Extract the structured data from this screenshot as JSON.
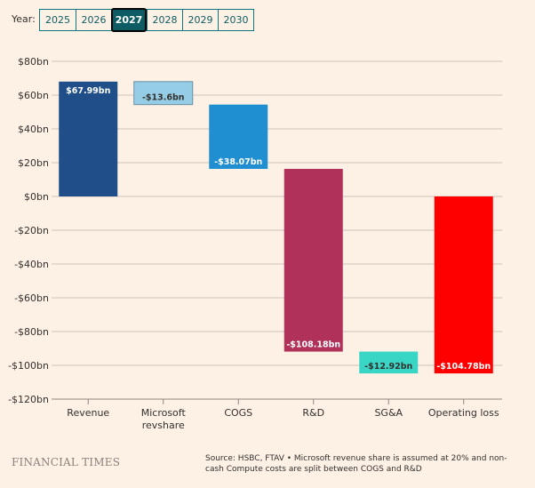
{
  "controls": {
    "year_label": "Year:",
    "years": [
      "2025",
      "2026",
      "2027",
      "2028",
      "2029",
      "2030"
    ],
    "selected": "2027"
  },
  "chart_data": {
    "type": "waterfall",
    "categories": [
      "Revenue",
      "Microsoft revshare",
      "COGS",
      "R&D",
      "SG&A",
      "Operating loss"
    ],
    "category_lines": [
      [
        "Revenue"
      ],
      [
        "Microsoft",
        "revshare"
      ],
      [
        "COGS"
      ],
      [
        "R&D"
      ],
      [
        "SG&A"
      ],
      [
        "Operating loss"
      ]
    ],
    "values": [
      67.99,
      -13.6,
      -38.07,
      -108.18,
      -12.92,
      -104.78
    ],
    "data_labels": [
      "$67.99bn",
      "-$13.6bn",
      "-$38.07bn",
      "-$108.18bn",
      "-$12.92bn",
      "-$104.78bn"
    ],
    "total_flags": [
      true,
      false,
      false,
      false,
      false,
      true
    ],
    "colors": [
      "#1f4e89",
      "#96cde6",
      "#1f8fd1",
      "#b0325b",
      "#3ad6c5",
      "#ff0000"
    ],
    "label_colors": [
      "#ffffff",
      "#33302e",
      "#ffffff",
      "#ffffff",
      "#33302e",
      "#ffffff"
    ],
    "y_ticks": [
      80,
      60,
      40,
      20,
      0,
      -20,
      -40,
      -60,
      -80,
      -100,
      -120
    ],
    "y_tick_labels": [
      "$80bn",
      "$60bn",
      "$40bn",
      "$20bn",
      "$0bn",
      "-$20bn",
      "-$40bn",
      "-$60bn",
      "-$80bn",
      "-$100bn",
      "-$120bn"
    ],
    "ylim": [
      -120,
      80
    ],
    "grid": true
  },
  "footer": {
    "brand": "FINANCIAL TIMES",
    "source": "Source: HSBC, FTAV • Microsoft revenue share is assumed at 20% and non-cash Compute costs are split between COGS and R&D"
  }
}
